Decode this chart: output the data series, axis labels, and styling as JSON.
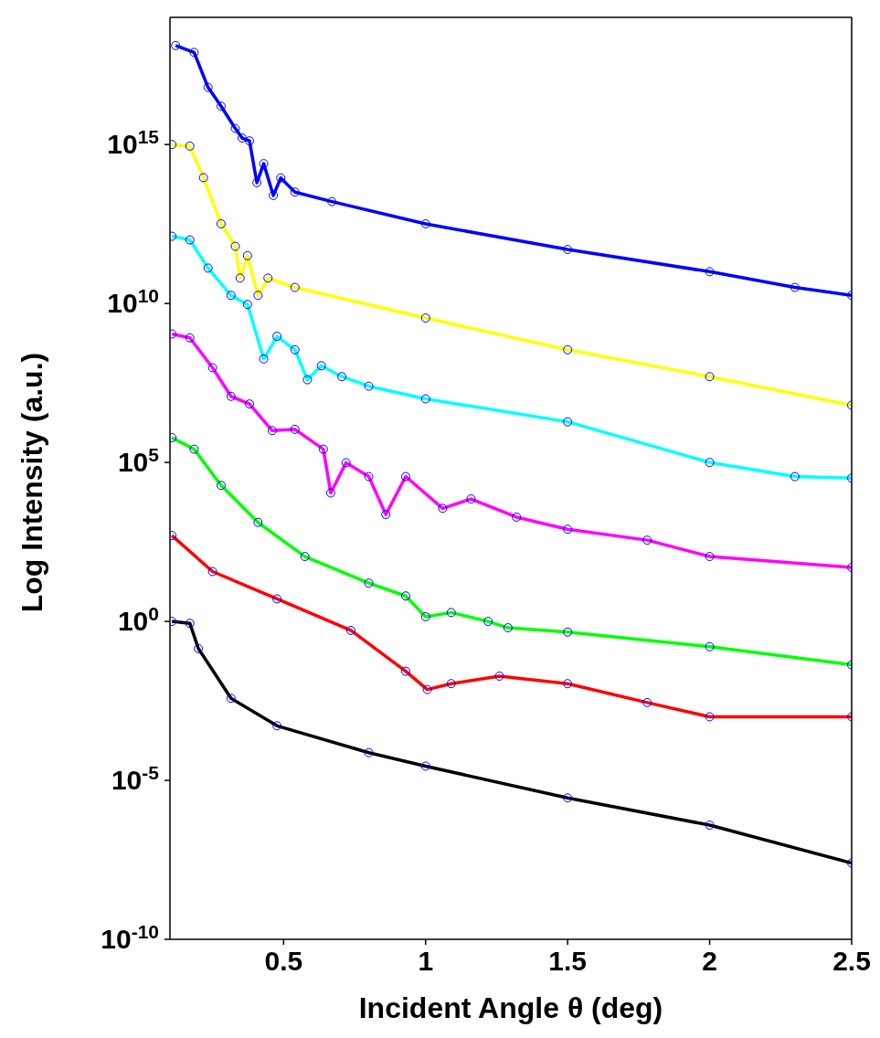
{
  "chart_data": {
    "type": "line",
    "xlabel": "Incident Angle θ (deg)",
    "ylabel": "Log Intensity (a.u.)",
    "log": true,
    "xlim": [
      0.1,
      2.5
    ],
    "xticks": [
      0.5,
      1,
      1.5,
      2,
      2.5
    ],
    "ylim": [
      1e-10,
      1e+19
    ],
    "yticks": [
      {
        "value": 1e-10,
        "label": "10$^{-10}$"
      },
      {
        "value": 1e-05,
        "label": "10$^{-5}$"
      },
      {
        "value": 1,
        "label": "10$^{0}$"
      },
      {
        "value": 100000.0,
        "label": "10$^{5}$"
      },
      {
        "value": 10000000000.0,
        "label": "10$^{10}$"
      },
      {
        "value": 1000000000000000.0,
        "label": "10$^{15}$"
      }
    ],
    "series": [
      {
        "type": "scatter",
        "marker": "circle",
        "color": "#0000ff",
        "x": [
          0.12,
          0.185,
          0.234,
          0.28,
          0.33,
          0.354,
          0.38,
          0.406,
          0.43,
          0.464,
          0.49,
          0.54,
          0.67,
          1.0,
          1.5,
          2.0,
          2.3,
          2.5
        ],
        "values": [
          1.3e+18,
          7.9e+17,
          6.3e+16,
          1.6e+16,
          3200000000000000.0,
          1600000000000000.0,
          1300000000000000.0,
          63000000000000.0,
          250000000000000.0,
          25000000000000.0,
          89000000000000.0,
          32000000000000.0,
          16000000000000.0,
          3200000000000.0,
          500000000000.0,
          100000000000.0,
          32000000000.0,
          18000000000.0
        ]
      },
      {
        "marker": "none",
        "color": "#0000ff",
        "x": [
          0.12,
          0.185,
          0.234,
          0.28,
          0.33,
          0.354,
          0.38,
          0.406,
          0.43,
          0.464,
          0.49,
          0.54,
          0.67,
          1.0,
          1.5,
          2.0,
          2.3,
          2.5
        ],
        "values": [
          1.3e+18,
          7.9e+17,
          6.3e+16,
          1.6e+16,
          3200000000000000.0,
          1600000000000000.0,
          1300000000000000.0,
          63000000000000.0,
          250000000000000.0,
          25000000000000.0,
          89000000000000.0,
          32000000000000.0,
          16000000000000.0,
          3200000000000.0,
          500000000000.0,
          100000000000.0,
          32000000000.0,
          18000000000.0
        ]
      },
      {
        "type": "scatter",
        "marker": "circle",
        "color": "#0000ff",
        "x": [
          0.107,
          0.17,
          0.218,
          0.28,
          0.33,
          0.347,
          0.373,
          0.41,
          0.445,
          0.54,
          1.0,
          1.5,
          2.0,
          2.5
        ],
        "values": [
          1000000000000000.0,
          890000000000000.0,
          91000000000000.0,
          3200000000000.0,
          630000000000.0,
          63000000000.0,
          320000000000.0,
          18000000000.0,
          63000000000.0,
          32000000000.0,
          3500000000.0,
          350000000.0,
          50000000.0,
          6300000.0
        ]
      },
      {
        "marker": "none",
        "color": "#ffff00",
        "x": [
          0.107,
          0.17,
          0.218,
          0.28,
          0.33,
          0.347,
          0.373,
          0.41,
          0.445,
          0.54,
          1.0,
          1.5,
          2.0,
          2.5
        ],
        "values": [
          1000000000000000.0,
          890000000000000.0,
          91000000000000.0,
          3200000000000.0,
          630000000000.0,
          63000000000.0,
          320000000000.0,
          18000000000.0,
          63000000000.0,
          32000000000.0,
          3500000000.0,
          350000000.0,
          50000000.0,
          6300000.0
        ]
      },
      {
        "type": "scatter",
        "marker": "circle",
        "color": "#0000ff",
        "x": [
          0.107,
          0.17,
          0.234,
          0.315,
          0.373,
          0.43,
          0.477,
          0.54,
          0.584,
          0.633,
          0.705,
          0.8,
          1.0,
          1.5,
          2.0,
          2.3,
          2.5
        ],
        "values": [
          1300000000000.0,
          1000000000000.0,
          130000000000.0,
          18000000000.0,
          9300000000.0,
          180000000.0,
          930000000.0,
          350000000.0,
          40000000.0,
          110000000.0,
          50000000.0,
          25000000.0,
          10000000.0,
          1900000.0,
          100000.0,
          36000.0,
          32000.0
        ]
      },
      {
        "marker": "none",
        "color": "#00ffff",
        "x": [
          0.107,
          0.17,
          0.234,
          0.315,
          0.373,
          0.43,
          0.477,
          0.54,
          0.584,
          0.633,
          0.705,
          0.8,
          1.0,
          1.5,
          2.0,
          2.3,
          2.5
        ],
        "values": [
          1300000000000.0,
          1000000000000.0,
          130000000000.0,
          18000000000.0,
          9300000000.0,
          180000000.0,
          930000000.0,
          350000000.0,
          40000000.0,
          110000000.0,
          50000000.0,
          25000000.0,
          10000000.0,
          1900000.0,
          100000.0,
          36000.0,
          32000.0
        ]
      },
      {
        "type": "scatter",
        "marker": "circle",
        "color": "#0000ff",
        "x": [
          0.107,
          0.17,
          0.25,
          0.315,
          0.38,
          0.46,
          0.54,
          0.64,
          0.666,
          0.72,
          0.8,
          0.86,
          0.93,
          1.06,
          1.16,
          1.32,
          1.5,
          1.78,
          2.0,
          2.5
        ],
        "values": [
          1100000000.0,
          830000000.0,
          95000000.0,
          12000000.0,
          6900000.0,
          1000000.0,
          1100000.0,
          260000.0,
          11000.0,
          98000.0,
          36000.0,
          2300.0,
          36000.0,
          3600.0,
          7100.0,
          1900.0,
          790.0,
          360.0,
          110.0,
          50
        ]
      },
      {
        "marker": "none",
        "color": "#ff00ff",
        "x": [
          0.107,
          0.17,
          0.25,
          0.315,
          0.38,
          0.46,
          0.54,
          0.64,
          0.666,
          0.72,
          0.8,
          0.86,
          0.93,
          1.06,
          1.16,
          1.32,
          1.5,
          1.78,
          2.0,
          2.5
        ],
        "values": [
          1100000000.0,
          830000000.0,
          95000000.0,
          12000000.0,
          6900000.0,
          1000000.0,
          1100000.0,
          260000.0,
          11000.0,
          98000.0,
          36000.0,
          2300.0,
          36000.0,
          3600.0,
          7100.0,
          1900.0,
          790.0,
          360.0,
          110.0,
          50
        ]
      },
      {
        "type": "scatter",
        "marker": "circle",
        "color": "#0000ff",
        "x": [
          0.107,
          0.185,
          0.28,
          0.41,
          0.575,
          0.8,
          0.93,
          1.0,
          1.09,
          1.22,
          1.29,
          1.5,
          2.0,
          2.5
        ],
        "values": [
          600000.0,
          260000.0,
          19000.0,
          1300.0,
          110.0,
          16,
          6.3,
          1.4,
          1.9,
          1,
          0.63,
          0.46,
          0.16,
          0.043
        ]
      },
      {
        "marker": "none",
        "color": "#00ff00",
        "x": [
          0.107,
          0.185,
          0.28,
          0.41,
          0.575,
          0.8,
          0.93,
          1.0,
          1.09,
          1.22,
          1.29,
          1.5,
          2.0,
          2.5
        ],
        "values": [
          600000.0,
          260000.0,
          19000.0,
          1300.0,
          110.0,
          16,
          6.3,
          1.4,
          1.9,
          1,
          0.63,
          0.46,
          0.16,
          0.043
        ]
      },
      {
        "type": "scatter",
        "marker": "circle",
        "color": "#0000ff",
        "x": [
          0.107,
          0.25,
          0.477,
          0.737,
          0.93,
          1.006,
          1.09,
          1.26,
          1.5,
          1.78,
          2.0,
          2.5
        ],
        "values": [
          500,
          37,
          5.1,
          0.52,
          0.027,
          0.0072,
          0.011,
          0.019,
          0.011,
          0.0028,
          0.001,
          0.001
        ]
      },
      {
        "marker": "none",
        "color": "#ff0000",
        "x": [
          0.107,
          0.25,
          0.477,
          0.737,
          0.93,
          1.006,
          1.09,
          1.26,
          1.5,
          1.78,
          2.0,
          2.5
        ],
        "values": [
          500,
          37,
          5.1,
          0.52,
          0.027,
          0.0072,
          0.011,
          0.019,
          0.011,
          0.0028,
          0.001,
          0.001
        ]
      },
      {
        "type": "scatter",
        "marker": "circle",
        "color": "#0000ff",
        "x": [
          0.107,
          0.17,
          0.2,
          0.315,
          0.477,
          0.8,
          1.0,
          1.5,
          2.0,
          2.5
        ],
        "values": [
          1,
          0.87,
          0.14,
          0.0038,
          0.00052,
          7.4e-05,
          2.8e-05,
          2.8e-06,
          3.9e-07,
          2.5e-08
        ]
      },
      {
        "marker": "none",
        "color": "#000000",
        "x": [
          0.107,
          0.17,
          0.2,
          0.315,
          0.477,
          0.8,
          1.0,
          1.5,
          2.0,
          2.5
        ],
        "values": [
          1,
          0.87,
          0.14,
          0.0038,
          0.00052,
          7.4e-05,
          2.8e-05,
          2.8e-06,
          3.9e-07,
          2.5e-08
        ]
      }
    ]
  }
}
